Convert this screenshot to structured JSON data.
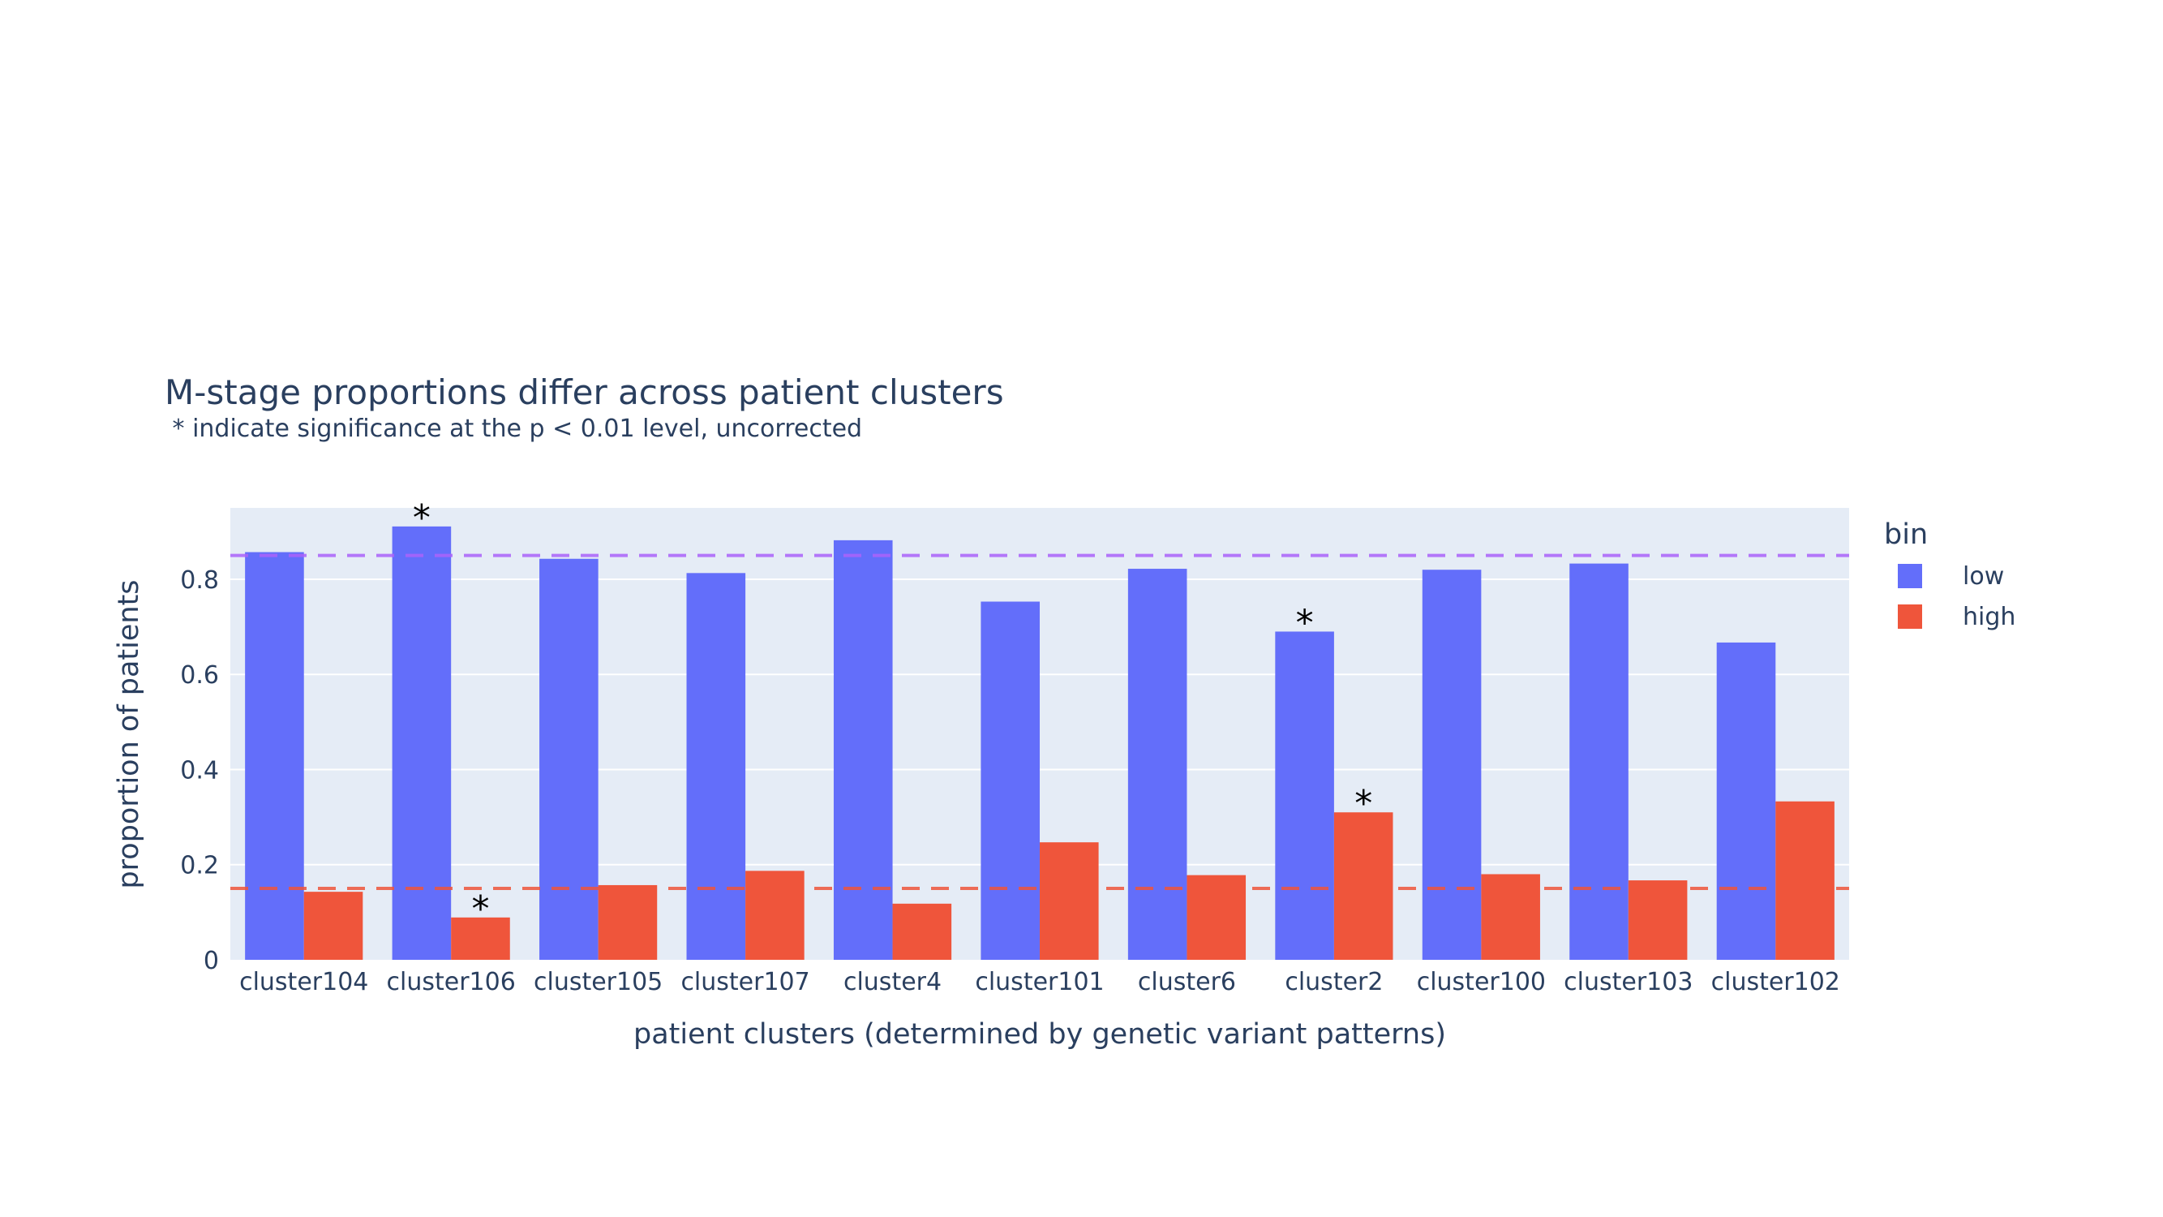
{
  "chart_data": {
    "type": "bar",
    "title": "M-stage proportions differ across patient clusters",
    "subtitle": " * indicate significance at the p < 0.01 level, uncorrected",
    "xlabel": "patient clusters (determined by genetic variant patterns)",
    "ylabel": "proportion of patients",
    "ylim": [
      0,
      0.95
    ],
    "yticks": [
      0,
      0.2,
      0.4,
      0.6,
      0.8
    ],
    "ytick_labels": [
      "0",
      "0.2",
      "0.4",
      "0.6",
      "0.8"
    ],
    "grid": true,
    "legend": {
      "title": "bin",
      "placement": "top-right outside"
    },
    "categories": [
      "cluster104",
      "cluster106",
      "cluster105",
      "cluster107",
      "cluster4",
      "cluster101",
      "cluster6",
      "cluster2",
      "cluster100",
      "cluster103",
      "cluster102"
    ],
    "series": [
      {
        "name": "low",
        "color": "#636efa",
        "values": [
          0.857,
          0.911,
          0.843,
          0.813,
          0.882,
          0.753,
          0.822,
          0.69,
          0.82,
          0.833,
          0.667
        ]
      },
      {
        "name": "high",
        "color": "#ef553b",
        "values": [
          0.143,
          0.089,
          0.157,
          0.187,
          0.118,
          0.247,
          0.178,
          0.31,
          0.18,
          0.167,
          0.333
        ]
      }
    ],
    "reference_lines": [
      {
        "y": 0.85,
        "color": "#ab63fa",
        "style": "dashed"
      },
      {
        "y": 0.15,
        "color": "#ef553b",
        "style": "dashed"
      }
    ],
    "annotations": [
      {
        "text": "*",
        "category": "cluster106",
        "series": "low"
      },
      {
        "text": "*",
        "category": "cluster106",
        "series": "high"
      },
      {
        "text": "*",
        "category": "cluster2",
        "series": "low"
      },
      {
        "text": "*",
        "category": "cluster2",
        "series": "high"
      }
    ],
    "plot_background": "#e5ecf6"
  }
}
